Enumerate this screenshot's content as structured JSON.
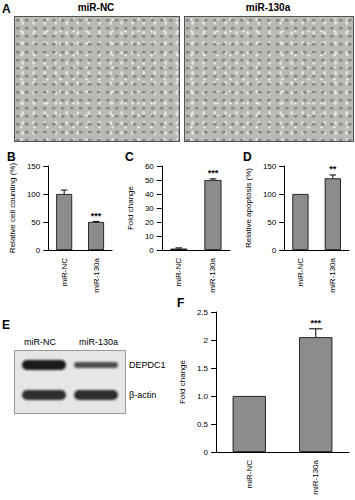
{
  "images": {
    "title": "A",
    "labels": [
      "miR-NC",
      "miR-130a"
    ]
  },
  "blot": {
    "title": "E",
    "lanes": [
      "miR-NC",
      "miR-130a"
    ],
    "bands": [
      "DEPDC1",
      "β-actin"
    ]
  },
  "chart_data": [
    {
      "type": "bar",
      "title": "B",
      "y_label": "Relative cell counting (%)",
      "categories": [
        "miR-NC",
        "miR-130a"
      ],
      "values": [
        100,
        50
      ],
      "errors": [
        7,
        1
      ],
      "annotations": [
        {
          "category": "miR-130a",
          "text": "***"
        }
      ],
      "color": "#8c8c8c",
      "ylim": [
        0,
        150
      ],
      "yticks": [
        0,
        50,
        100,
        150
      ],
      "grid": false
    },
    {
      "type": "bar",
      "title": "C",
      "y_label": "Fold change",
      "categories": [
        "miR-NC",
        "miR-130a"
      ],
      "values": [
        1,
        50
      ],
      "errors": [
        0.5,
        0.8
      ],
      "annotations": [
        {
          "category": "miR-130a",
          "text": "***"
        }
      ],
      "color": "#8c8c8c",
      "ylim": [
        0,
        60
      ],
      "yticks": [
        0,
        10,
        20,
        30,
        40,
        50,
        60
      ],
      "grid": false
    },
    {
      "type": "bar",
      "title": "D",
      "y_label": "Relative apoptosis (%)",
      "categories": [
        "miR-NC",
        "miR-130a"
      ],
      "values": [
        100,
        128
      ],
      "errors": [
        0,
        6
      ],
      "annotations": [
        {
          "category": "miR-130a",
          "text": "**"
        }
      ],
      "color": "#8c8c8c",
      "ylim": [
        0,
        150
      ],
      "yticks": [
        0,
        50,
        100,
        150
      ],
      "grid": false
    },
    {
      "type": "bar",
      "title": "F",
      "y_label": "Fold change",
      "categories": [
        "miR-NC",
        "miR-130a"
      ],
      "values": [
        1,
        2.05
      ],
      "errors": [
        0,
        0.15
      ],
      "annotations": [
        {
          "category": "miR-130a",
          "text": "***"
        }
      ],
      "color": "#8c8c8c",
      "ylim": [
        0,
        2.5
      ],
      "yticks": [
        0,
        0.5,
        {
          "value": 1,
          "label": "1.0"
        },
        1.5,
        2,
        2.5
      ],
      "grid": false
    }
  ]
}
